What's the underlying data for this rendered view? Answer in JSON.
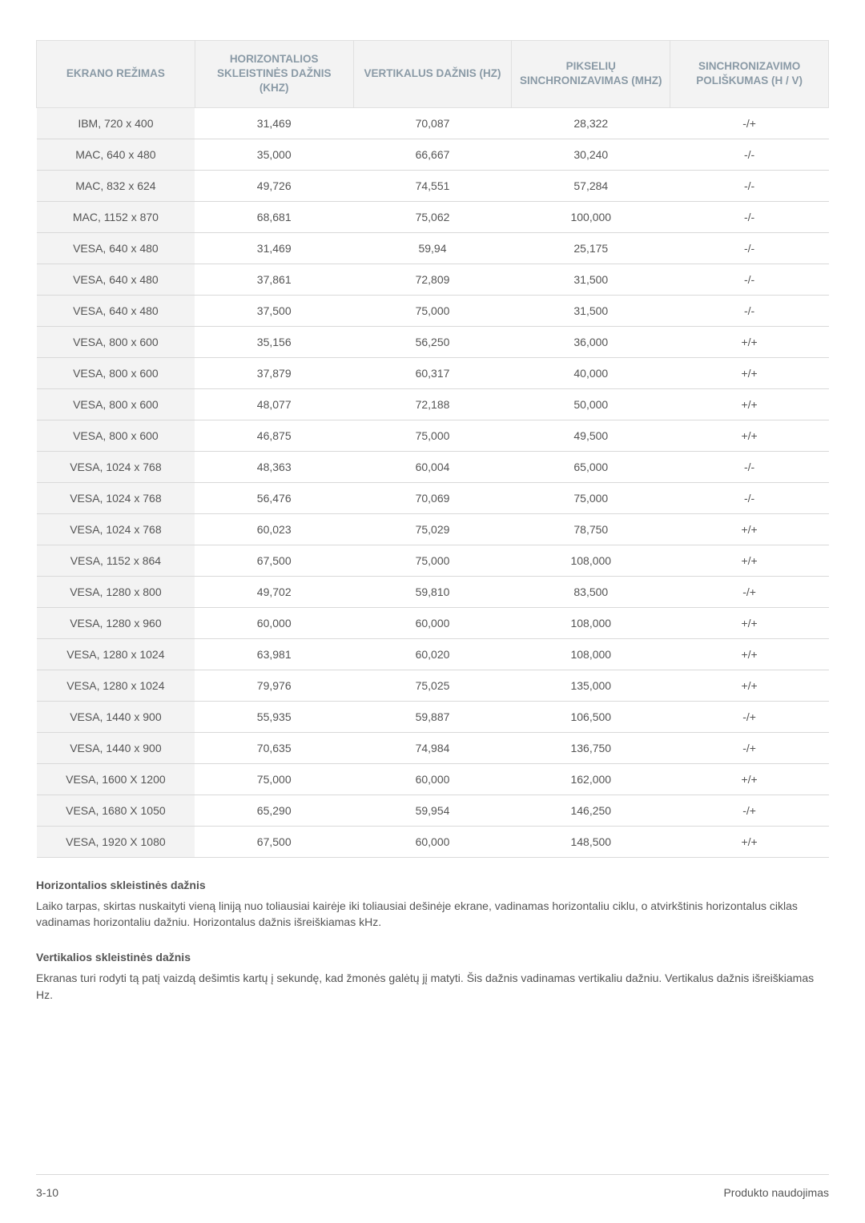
{
  "table": {
    "columns": [
      "EKRANO REŽIMAS",
      "HORIZONTALIOS SKLEISTINĖS DAŽNIS (KHZ)",
      "VERTIKALUS DAŽNIS (HZ)",
      "PIKSELIŲ SINCHRONIZAVIMAS (MHZ)",
      "SINCHRONIZAVIMO POLIŠKUMAS (H / V)"
    ],
    "col_widths_pct": [
      20,
      20,
      20,
      20,
      20
    ],
    "header_bg": "#f3f3f3",
    "header_color": "#8a9aa6",
    "border_color": "#d9d9d9",
    "first_col_bg": "#f3f3f3",
    "text_color": "#555555",
    "fontsize": 14,
    "rows": [
      [
        "IBM, 720 x 400",
        "31,469",
        "70,087",
        "28,322",
        "-/+"
      ],
      [
        "MAC, 640 x 480",
        "35,000",
        "66,667",
        "30,240",
        "-/-"
      ],
      [
        "MAC, 832 x 624",
        "49,726",
        "74,551",
        "57,284",
        "-/-"
      ],
      [
        "MAC, 1152 x 870",
        "68,681",
        "75,062",
        "100,000",
        "-/-"
      ],
      [
        "VESA, 640 x 480",
        "31,469",
        "59,94",
        "25,175",
        "-/-"
      ],
      [
        "VESA, 640 x 480",
        "37,861",
        "72,809",
        "31,500",
        "-/-"
      ],
      [
        "VESA, 640 x 480",
        "37,500",
        "75,000",
        "31,500",
        "-/-"
      ],
      [
        "VESA, 800 x 600",
        "35,156",
        "56,250",
        "36,000",
        "+/+"
      ],
      [
        "VESA, 800 x 600",
        "37,879",
        "60,317",
        "40,000",
        "+/+"
      ],
      [
        "VESA, 800 x 600",
        "48,077",
        "72,188",
        "50,000",
        "+/+"
      ],
      [
        "VESA, 800 x 600",
        "46,875",
        "75,000",
        "49,500",
        "+/+"
      ],
      [
        "VESA, 1024 x 768",
        "48,363",
        "60,004",
        "65,000",
        "-/-"
      ],
      [
        "VESA, 1024 x 768",
        "56,476",
        "70,069",
        "75,000",
        "-/-"
      ],
      [
        "VESA, 1024 x 768",
        "60,023",
        "75,029",
        "78,750",
        "+/+"
      ],
      [
        "VESA, 1152 x 864",
        "67,500",
        "75,000",
        "108,000",
        "+/+"
      ],
      [
        "VESA, 1280 x 800",
        "49,702",
        "59,810",
        "83,500",
        "-/+"
      ],
      [
        "VESA, 1280 x 960",
        "60,000",
        "60,000",
        "108,000",
        "+/+"
      ],
      [
        "VESA, 1280 x 1024",
        "63,981",
        "60,020",
        "108,000",
        "+/+"
      ],
      [
        "VESA, 1280 x 1024",
        "79,976",
        "75,025",
        "135,000",
        "+/+"
      ],
      [
        "VESA, 1440 x 900",
        "55,935",
        "59,887",
        "106,500",
        "-/+"
      ],
      [
        "VESA, 1440 x 900",
        "70,635",
        "74,984",
        "136,750",
        "-/+"
      ],
      [
        "VESA, 1600 X 1200",
        "75,000",
        "60,000",
        "162,000",
        "+/+"
      ],
      [
        "VESA, 1680 X 1050",
        "65,290",
        "59,954",
        "146,250",
        "-/+"
      ],
      [
        "VESA, 1920 X 1080",
        "67,500",
        "60,000",
        "148,500",
        "+/+"
      ]
    ]
  },
  "sections": {
    "h1_title": "Horizontalios skleistinės dažnis",
    "h1_text": "Laiko tarpas, skirtas nuskaityti vieną liniją nuo toliausiai kairėje iki toliausiai dešinėje ekrane, vadinamas horizontaliu ciklu, o atvirkštinis horizontalus ciklas vadinamas horizontaliu dažniu. Horizontalus dažnis išreiškiamas kHz.",
    "h2_title": "Vertikalios skleistinės dažnis",
    "h2_text": "Ekranas turi rodyti tą patį vaizdą dešimtis kartų į sekundę, kad žmonės galėtų jį matyti. Šis dažnis vadinamas vertikaliu dažniu. Vertikalus dažnis išreiškiamas Hz."
  },
  "footer": {
    "left": "3-10",
    "right": "Produkto naudojimas"
  }
}
